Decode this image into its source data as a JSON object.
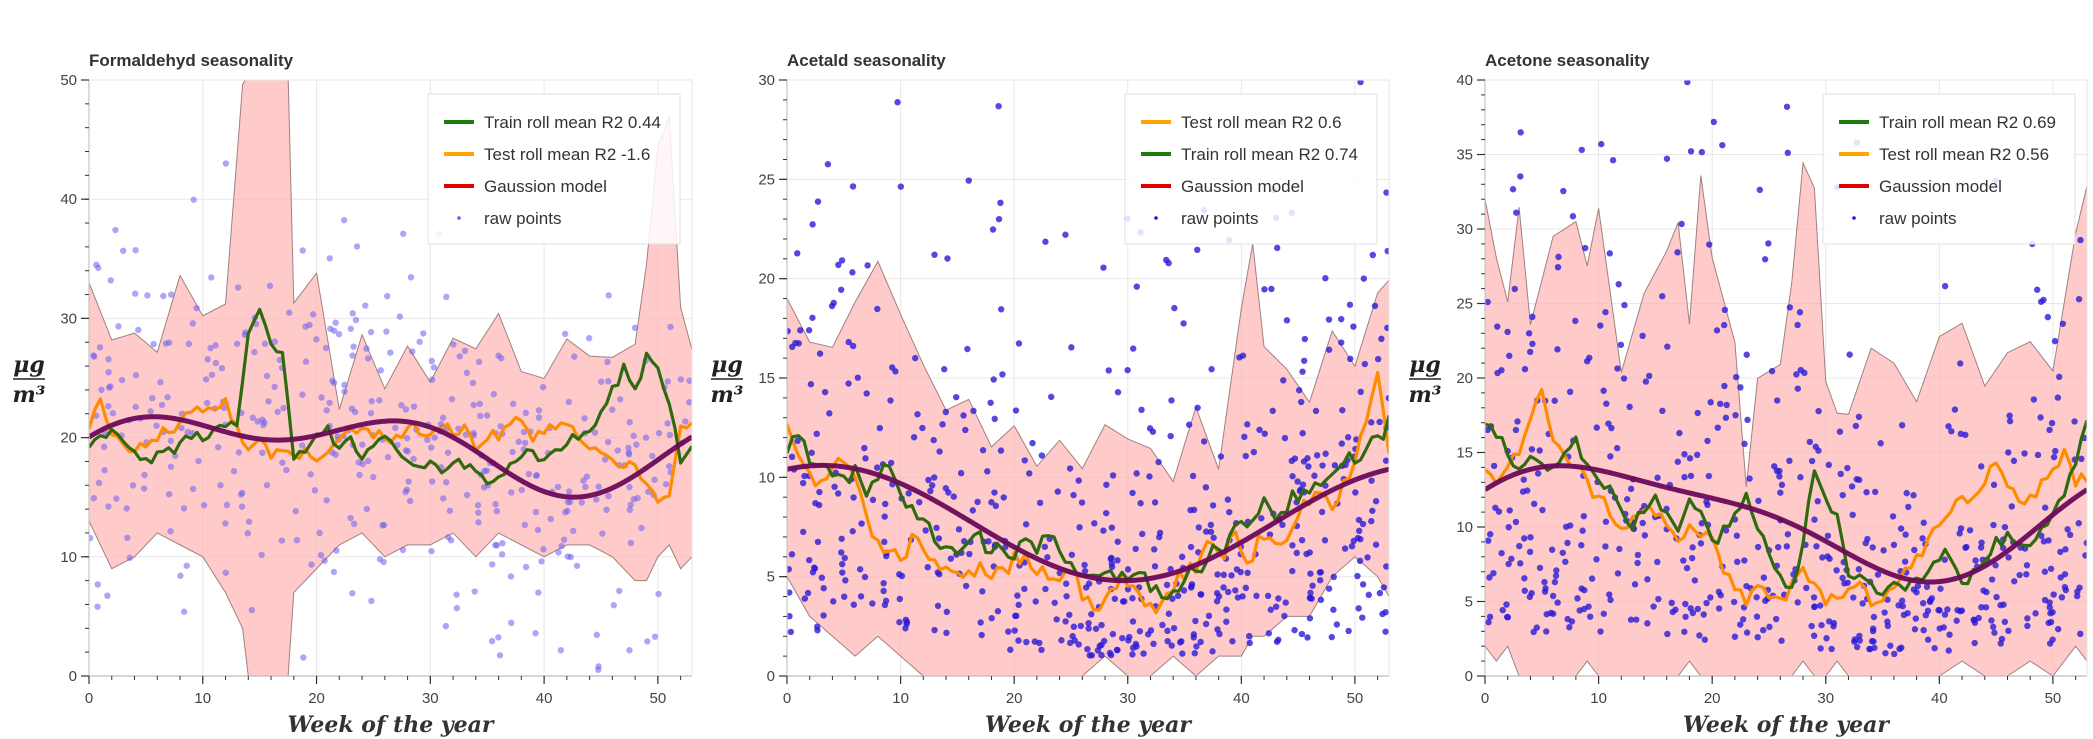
{
  "chart_data": [
    {
      "type": "line",
      "title": "Formaldehyd seasonality",
      "xlabel": "Week of the year",
      "ylabel_num": "μg",
      "ylabel_den": "m³",
      "xlim": [
        0,
        53
      ],
      "ylim": [
        0,
        50
      ],
      "xticks": [
        0,
        10,
        20,
        30,
        40,
        50
      ],
      "yticks": [
        0,
        10,
        20,
        30,
        40,
        50
      ],
      "grid": true,
      "legend_position": "top-right",
      "legend": [
        {
          "label": "Train roll mean R2 0.44",
          "color": "#1f7a10",
          "kind": "line"
        },
        {
          "label": "Test roll mean R2 -1.6",
          "color": "#ffa500",
          "kind": "line"
        },
        {
          "label": "Gaussion model",
          "color": "#e00000",
          "kind": "line"
        },
        {
          "label": "raw points",
          "color": "#6a5cf0",
          "kind": "dot"
        }
      ],
      "points_color": "#6a5cf0",
      "band": {
        "x": [
          0,
          2,
          4,
          6,
          8,
          10,
          12,
          13.5,
          14,
          16,
          17.5,
          18,
          20,
          22,
          24,
          26,
          28,
          30,
          32,
          34,
          36,
          38,
          40,
          42,
          44,
          46,
          48,
          49,
          50,
          51,
          52,
          53
        ],
        "upper": [
          33,
          28,
          29,
          27,
          33,
          30,
          31,
          50,
          50,
          50,
          50,
          31,
          34,
          22,
          29,
          24,
          28,
          25,
          28,
          27,
          30,
          26,
          25,
          28,
          27,
          27,
          28,
          34,
          44,
          47,
          31,
          27
        ],
        "lower": [
          13,
          9,
          10,
          12,
          11,
          10,
          7,
          4,
          0,
          0,
          0,
          7,
          9,
          11,
          12,
          10,
          11,
          11,
          12,
          10,
          12,
          11,
          10,
          11,
          11,
          10,
          8,
          8,
          10,
          11,
          9,
          10
        ]
      },
      "train": {
        "x": [
          0,
          1,
          2,
          3,
          4,
          5,
          6,
          7,
          8,
          9,
          10,
          11,
          12,
          13,
          14,
          15,
          16,
          17,
          18,
          19,
          20,
          21,
          22,
          23,
          24,
          25,
          26,
          27,
          28,
          29,
          30,
          31,
          32,
          33,
          34,
          35,
          36,
          37,
          38,
          39,
          40,
          41,
          42,
          43,
          44,
          45,
          46,
          47,
          48,
          49,
          50,
          51,
          52,
          53
        ],
        "y": [
          19,
          20,
          20.5,
          19.5,
          19,
          18,
          18.5,
          19,
          19.5,
          20,
          20,
          20.5,
          21,
          21,
          29,
          31,
          28,
          27,
          18,
          19,
          20,
          21,
          19,
          20,
          18,
          19,
          20,
          19,
          18,
          17.5,
          18,
          17,
          18,
          17.5,
          17,
          16,
          17,
          18,
          18.5,
          19,
          18,
          19,
          19.5,
          20,
          20.5,
          22,
          24,
          26,
          24,
          27,
          26,
          23,
          18,
          19
        ]
      },
      "test": {
        "x": [
          0,
          1,
          2,
          3,
          4,
          5,
          6,
          7,
          8,
          9,
          10,
          11,
          12,
          13,
          14,
          15,
          16,
          17,
          18,
          19,
          20,
          21,
          22,
          23,
          24,
          25,
          26,
          27,
          28,
          29,
          30,
          31,
          32,
          33,
          34,
          35,
          36,
          37,
          38,
          39,
          40,
          41,
          42,
          43,
          44,
          45,
          46,
          47,
          48,
          49,
          50,
          51,
          52,
          53
        ],
        "y": [
          21,
          23,
          20,
          19.5,
          19,
          19,
          20,
          20.5,
          21,
          22,
          22,
          22.5,
          23,
          21,
          19,
          20,
          18.5,
          19,
          18.5,
          19,
          18,
          19,
          20,
          20.5,
          21,
          20,
          20,
          20,
          21,
          20.5,
          20,
          21,
          20.5,
          21,
          19,
          20,
          20,
          21,
          21.5,
          20,
          20.5,
          21,
          21,
          20,
          19,
          18.5,
          18,
          17.5,
          18,
          16,
          14.5,
          15,
          21,
          21
        ]
      },
      "model": {
        "mean": 19.3,
        "amp1": 2.4,
        "ph1": 6.0,
        "amp2": 1.9,
        "ph2": 0.85
      }
    },
    {
      "type": "line",
      "title": "Acetald seasonality",
      "xlabel": "Week of the year",
      "ylabel_num": "μg",
      "ylabel_den": "m³",
      "xlim": [
        0,
        53
      ],
      "ylim": [
        0,
        30
      ],
      "xticks": [
        0,
        10,
        20,
        30,
        40,
        50
      ],
      "yticks": [
        0,
        5,
        10,
        15,
        20,
        25,
        30
      ],
      "grid": true,
      "legend_position": "top-right",
      "legend": [
        {
          "label": "Test roll mean R2 0.6",
          "color": "#ffa500",
          "kind": "line"
        },
        {
          "label": "Train roll mean R2 0.74",
          "color": "#1f7a10",
          "kind": "line"
        },
        {
          "label": "Gaussion model",
          "color": "#e00000",
          "kind": "line"
        },
        {
          "label": "raw points",
          "color": "#1a1adc",
          "kind": "dot"
        }
      ],
      "points_color": "#2a1ad8",
      "band": {
        "x": [
          0,
          2,
          4,
          6,
          8,
          10,
          12,
          14,
          16,
          18,
          20,
          22,
          24,
          26,
          28,
          30,
          32,
          34,
          36,
          38,
          40,
          41,
          42,
          44,
          46,
          48,
          50,
          52,
          53
        ],
        "upper": [
          19,
          17,
          16,
          19,
          21,
          18,
          16,
          13,
          14,
          12,
          13,
          11,
          12,
          10,
          13,
          12,
          11,
          10,
          14,
          11,
          18,
          22,
          16,
          15,
          14,
          17,
          16,
          19,
          20
        ],
        "lower": [
          5,
          3,
          2,
          1,
          2,
          1,
          0,
          0,
          0,
          0,
          0,
          0,
          0,
          0,
          1,
          0,
          0,
          1,
          0,
          1,
          1,
          2,
          2,
          3,
          3,
          5,
          6,
          5,
          4
        ]
      },
      "train": {
        "x": [
          0,
          1,
          2,
          3,
          4,
          5,
          6,
          7,
          8,
          9,
          10,
          11,
          12,
          13,
          14,
          15,
          16,
          17,
          18,
          19,
          20,
          21,
          22,
          23,
          24,
          25,
          26,
          27,
          28,
          29,
          30,
          31,
          32,
          33,
          34,
          35,
          36,
          37,
          38,
          39,
          40,
          41,
          42,
          43,
          44,
          45,
          46,
          47,
          48,
          49,
          50,
          51,
          52,
          53
        ],
        "y": [
          11,
          12,
          11,
          10.5,
          10,
          10,
          10.5,
          9,
          10,
          10.5,
          9,
          8.5,
          8,
          7,
          6.5,
          6,
          6.5,
          7,
          6.5,
          6.5,
          6,
          7,
          6,
          7,
          6,
          5.5,
          5,
          5,
          5.5,
          5,
          5,
          5.5,
          4.5,
          4,
          4,
          5,
          5.5,
          6,
          6.5,
          7,
          7.5,
          8,
          9,
          8,
          8.5,
          9,
          9,
          9.5,
          10,
          10.5,
          11,
          11.5,
          12,
          13
        ]
      },
      "test": {
        "x": [
          0,
          1,
          2,
          3,
          4,
          5,
          6,
          7,
          8,
          9,
          10,
          11,
          12,
          13,
          14,
          15,
          16,
          17,
          18,
          19,
          20,
          21,
          22,
          23,
          24,
          25,
          26,
          27,
          28,
          29,
          30,
          31,
          32,
          33,
          34,
          35,
          36,
          37,
          38,
          39,
          40,
          41,
          42,
          43,
          44,
          45,
          46,
          47,
          48,
          49,
          50,
          51,
          52,
          53
        ],
        "y": [
          12.5,
          11,
          10,
          10,
          10.5,
          10.5,
          10,
          8,
          7,
          6.5,
          6,
          7,
          6.5,
          6,
          5.5,
          5.5,
          5,
          6,
          5,
          5.5,
          6,
          6,
          5,
          5,
          4.5,
          5,
          4,
          3.5,
          4,
          4.5,
          4.5,
          4,
          3.5,
          4,
          4.5,
          5,
          5.5,
          6.5,
          6,
          7,
          6.5,
          6,
          7,
          6.5,
          7,
          8,
          8.5,
          9,
          8.5,
          10,
          11,
          13,
          15.5,
          11
        ]
      },
      "model": {
        "mean": 7.7,
        "amp1": 2.9,
        "ph1": 1.2,
        "amp2": 0.0,
        "ph2": 0
      }
    },
    {
      "type": "line",
      "title": "Acetone seasonality",
      "xlabel": "Week of the year",
      "ylabel_num": "μg",
      "ylabel_den": "m³",
      "xlim": [
        0,
        53
      ],
      "ylim": [
        0,
        40
      ],
      "xticks": [
        0,
        10,
        20,
        30,
        40,
        50
      ],
      "yticks": [
        0,
        5,
        10,
        15,
        20,
        25,
        30,
        35,
        40
      ],
      "grid": true,
      "legend_position": "top-right",
      "legend": [
        {
          "label": "Train roll mean R2 0.69",
          "color": "#1f7a10",
          "kind": "line"
        },
        {
          "label": "Test roll mean R2 0.56",
          "color": "#ffa500",
          "kind": "line"
        },
        {
          "label": "Gaussion model",
          "color": "#e00000",
          "kind": "line"
        },
        {
          "label": "raw points",
          "color": "#1a1adc",
          "kind": "dot"
        }
      ],
      "points_color": "#2a1ad8",
      "band": {
        "x": [
          0,
          1,
          2,
          3,
          4,
          6,
          8,
          9,
          10,
          12,
          14,
          16,
          17,
          18,
          19,
          20,
          22,
          23,
          24,
          26,
          27,
          28,
          29,
          30,
          31,
          32,
          34,
          36,
          38,
          40,
          42,
          44,
          46,
          48,
          50,
          52,
          53
        ],
        "upper": [
          32,
          28,
          25,
          31,
          24,
          29,
          30,
          28,
          31,
          20,
          26,
          28,
          31,
          24,
          33,
          28,
          22,
          13,
          20,
          21,
          26,
          35,
          33,
          20,
          18,
          17,
          22,
          21,
          18,
          23,
          24,
          20,
          22,
          23,
          20,
          30,
          33
        ],
        "lower": [
          2,
          1,
          2,
          0,
          0,
          0,
          0,
          1,
          0,
          0,
          0,
          0,
          0,
          1,
          0,
          0,
          0,
          0,
          0,
          0,
          0,
          1,
          0,
          0,
          1,
          0,
          0,
          0,
          0,
          0,
          1,
          0,
          0,
          1,
          0,
          2,
          1
        ]
      },
      "train": {
        "x": [
          0,
          1,
          2,
          3,
          4,
          5,
          6,
          7,
          8,
          9,
          10,
          11,
          12,
          13,
          14,
          15,
          16,
          17,
          18,
          19,
          20,
          21,
          22,
          23,
          24,
          25,
          26,
          27,
          28,
          29,
          30,
          31,
          32,
          33,
          34,
          35,
          36,
          37,
          38,
          39,
          40,
          41,
          42,
          43,
          44,
          45,
          46,
          47,
          48,
          49,
          50,
          51,
          52,
          53
        ],
        "y": [
          17,
          16,
          15,
          14,
          15,
          14.5,
          14,
          15,
          16,
          14,
          13,
          12.5,
          11,
          10,
          11,
          12,
          11,
          10,
          12,
          11,
          9,
          10,
          11,
          12,
          10,
          8.5,
          7,
          6,
          9,
          14,
          12,
          11,
          7,
          7,
          6,
          5.5,
          6.5,
          6,
          6.5,
          7,
          8,
          8,
          6,
          7,
          8,
          9,
          9.5,
          9,
          9,
          10,
          11,
          12,
          14,
          17
        ]
      },
      "test": {
        "x": [
          0,
          1,
          2,
          3,
          4,
          5,
          6,
          7,
          8,
          9,
          10,
          11,
          12,
          13,
          14,
          15,
          16,
          17,
          18,
          19,
          20,
          21,
          22,
          23,
          24,
          25,
          26,
          27,
          28,
          29,
          30,
          31,
          32,
          33,
          34,
          35,
          36,
          37,
          38,
          39,
          40,
          41,
          42,
          43,
          44,
          45,
          46,
          47,
          48,
          49,
          50,
          51,
          52,
          53
        ],
        "y": [
          14,
          13,
          14,
          15,
          17,
          19,
          16,
          15,
          14,
          13,
          12,
          11,
          10,
          10.5,
          11,
          11,
          10,
          9,
          10,
          9.5,
          9,
          7,
          6,
          5,
          6,
          5.5,
          5,
          6,
          7,
          6,
          5,
          5.5,
          6,
          6.5,
          5,
          5,
          6,
          7,
          8,
          9,
          10,
          11,
          12,
          12,
          13,
          14,
          13,
          12,
          12,
          13,
          14,
          15,
          13,
          13
        ]
      },
      "model": {
        "mean": 10.6,
        "amp1": 3.6,
        "ph1": 0.3,
        "amp2": 0.9,
        "ph2": 1.2
      }
    }
  ]
}
